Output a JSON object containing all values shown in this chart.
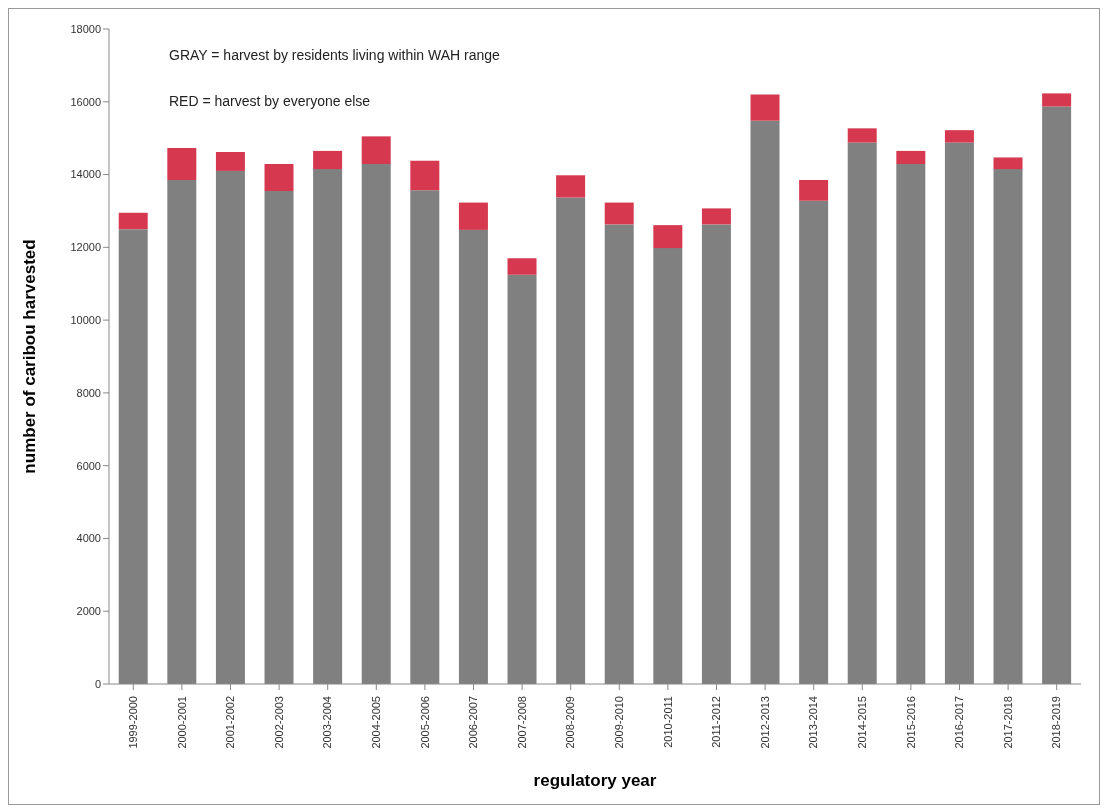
{
  "chart_data": {
    "type": "bar",
    "stacked": true,
    "xlabel": "regulatory year",
    "ylabel": "number of caribou harvested",
    "categories": [
      "1999-2000",
      "2000-2001",
      "2001-2002",
      "2002-2003",
      "2003-2004",
      "2004-2005",
      "2005-2006",
      "2006-2007",
      "2007-2008",
      "2008-2009",
      "2009-2010",
      "2010-2011",
      "2011-2012",
      "2012-2013",
      "2013-2014",
      "2014-2015",
      "2015-2016",
      "2016-2017",
      "2017-2018",
      "2018-2019"
    ],
    "series": [
      {
        "color": "#808080",
        "values": [
          12500,
          13850,
          14100,
          13550,
          14150,
          14290,
          13570,
          12480,
          11250,
          13370,
          12630,
          11980,
          12630,
          15480,
          13280,
          14880,
          14290,
          14880,
          14150,
          15870
        ]
      },
      {
        "color": "#d6384f",
        "values": [
          450,
          880,
          520,
          740,
          500,
          760,
          810,
          750,
          450,
          610,
          600,
          630,
          440,
          720,
          570,
          390,
          360,
          340,
          320,
          360
        ]
      }
    ],
    "ylim": [
      0,
      18000
    ],
    "yticks": [
      0,
      2000,
      4000,
      6000,
      8000,
      10000,
      12000,
      14000,
      16000,
      18000
    ],
    "legend": false,
    "annotations": [
      "GRAY = harvest by residents living within WAH range",
      "RED = harvest by everyone else"
    ]
  }
}
